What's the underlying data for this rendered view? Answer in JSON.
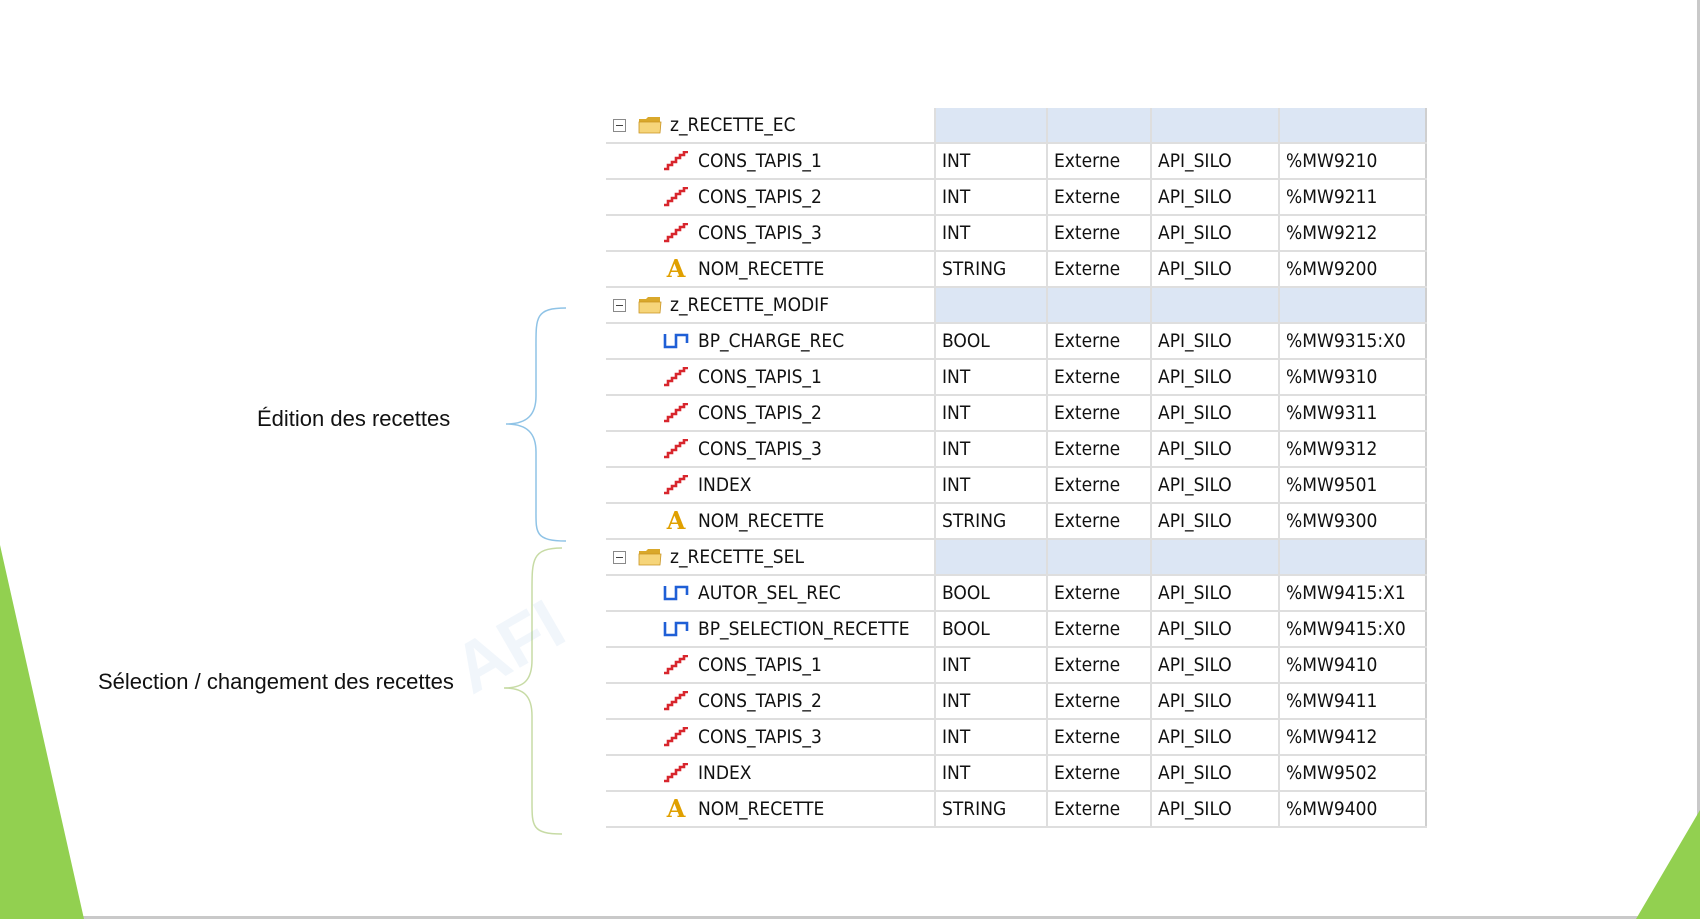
{
  "labels": {
    "edition": "Édition des recettes",
    "selection": "Sélection / changement des recettes"
  },
  "watermark": "AFI",
  "colors": {
    "green": "#92d050",
    "group_fill": "#dce6f4",
    "int_icon": "#d8262d",
    "bool_icon": "#1f5fd6",
    "string_icon": "#e0a000"
  },
  "groups": [
    {
      "name": "z_RECETTE_EC",
      "vars": [
        {
          "name": "CONS_TAPIS_1",
          "type": "INT",
          "scope": "Externe",
          "device": "API_SILO",
          "address": "%MW9210",
          "icon": "int-stair-icon"
        },
        {
          "name": "CONS_TAPIS_2",
          "type": "INT",
          "scope": "Externe",
          "device": "API_SILO",
          "address": "%MW9211",
          "icon": "int-stair-icon"
        },
        {
          "name": "CONS_TAPIS_3",
          "type": "INT",
          "scope": "Externe",
          "device": "API_SILO",
          "address": "%MW9212",
          "icon": "int-stair-icon"
        },
        {
          "name": "NOM_RECETTE",
          "type": "STRING",
          "scope": "Externe",
          "device": "API_SILO",
          "address": "%MW9200",
          "icon": "string-a-icon"
        }
      ]
    },
    {
      "name": "z_RECETTE_MODIF",
      "vars": [
        {
          "name": "BP_CHARGE_REC",
          "type": "BOOL",
          "scope": "Externe",
          "device": "API_SILO",
          "address": "%MW9315:X0",
          "icon": "bool-pulse-icon"
        },
        {
          "name": "CONS_TAPIS_1",
          "type": "INT",
          "scope": "Externe",
          "device": "API_SILO",
          "address": "%MW9310",
          "icon": "int-stair-icon"
        },
        {
          "name": "CONS_TAPIS_2",
          "type": "INT",
          "scope": "Externe",
          "device": "API_SILO",
          "address": "%MW9311",
          "icon": "int-stair-icon"
        },
        {
          "name": "CONS_TAPIS_3",
          "type": "INT",
          "scope": "Externe",
          "device": "API_SILO",
          "address": "%MW9312",
          "icon": "int-stair-icon"
        },
        {
          "name": "INDEX",
          "type": "INT",
          "scope": "Externe",
          "device": "API_SILO",
          "address": "%MW9501",
          "icon": "int-stair-icon"
        },
        {
          "name": "NOM_RECETTE",
          "type": "STRING",
          "scope": "Externe",
          "device": "API_SILO",
          "address": "%MW9300",
          "icon": "string-a-icon"
        }
      ]
    },
    {
      "name": "z_RECETTE_SEL",
      "vars": [
        {
          "name": "AUTOR_SEL_REC",
          "type": "BOOL",
          "scope": "Externe",
          "device": "API_SILO",
          "address": "%MW9415:X1",
          "icon": "bool-pulse-icon"
        },
        {
          "name": "BP_SELECTION_RECETTE",
          "type": "BOOL",
          "scope": "Externe",
          "device": "API_SILO",
          "address": "%MW9415:X0",
          "icon": "bool-pulse-icon"
        },
        {
          "name": "CONS_TAPIS_1",
          "type": "INT",
          "scope": "Externe",
          "device": "API_SILO",
          "address": "%MW9410",
          "icon": "int-stair-icon"
        },
        {
          "name": "CONS_TAPIS_2",
          "type": "INT",
          "scope": "Externe",
          "device": "API_SILO",
          "address": "%MW9411",
          "icon": "int-stair-icon"
        },
        {
          "name": "CONS_TAPIS_3",
          "type": "INT",
          "scope": "Externe",
          "device": "API_SILO",
          "address": "%MW9412",
          "icon": "int-stair-icon"
        },
        {
          "name": "INDEX",
          "type": "INT",
          "scope": "Externe",
          "device": "API_SILO",
          "address": "%MW9502",
          "icon": "int-stair-icon"
        },
        {
          "name": "NOM_RECETTE",
          "type": "STRING",
          "scope": "Externe",
          "device": "API_SILO",
          "address": "%MW9400",
          "icon": "string-a-icon"
        }
      ]
    }
  ]
}
